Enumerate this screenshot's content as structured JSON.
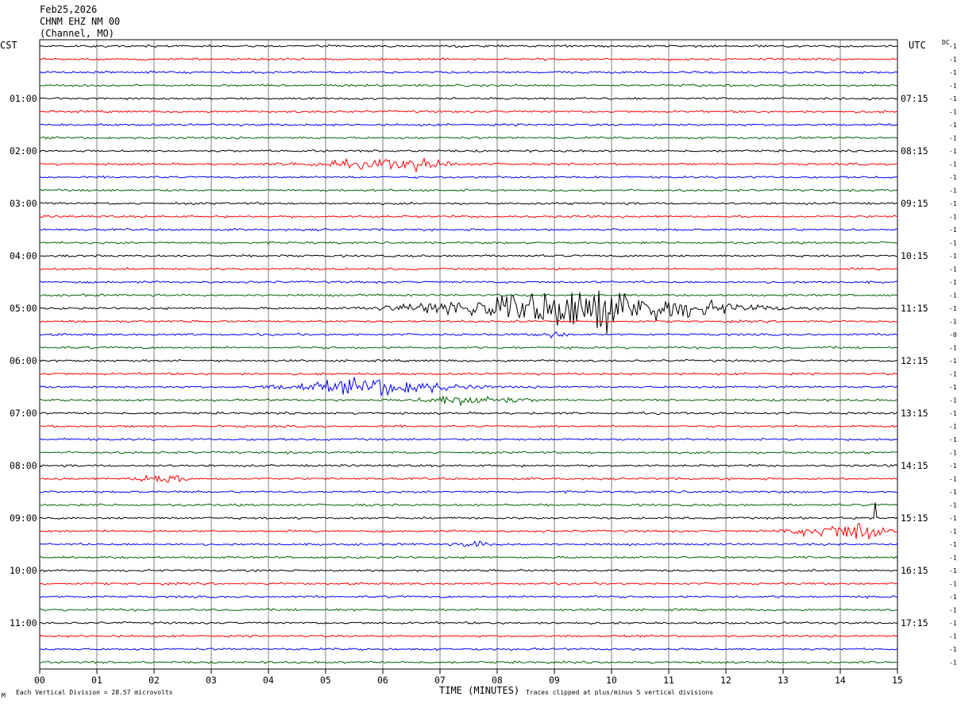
{
  "header": {
    "date": "Feb25,2026",
    "station": "CHNM EHZ NM 00",
    "location": "(Channel, MO)"
  },
  "left_zone_label": "CST",
  "right_zone_label": "UTC",
  "dc_label": "DC",
  "footer": {
    "corner_mark": "M",
    "scale_note": "Each Vertical Division =   28.57 microvolts",
    "xlabel": "TIME (MINUTES)",
    "clip_note": "Traces clipped at plus/minus 5 vertical divisions"
  },
  "colors": [
    "#000000",
    "#ff0000",
    "#0000ff",
    "#006400"
  ],
  "chart_data": {
    "type": "line",
    "title": "Feb25,2026 CHNM EHZ NM 00 (Channel, MO)",
    "xlabel": "TIME (MINUTES)",
    "xlim": [
      0,
      15
    ],
    "x_tick_labels": [
      "00",
      "01",
      "02",
      "03",
      "04",
      "05",
      "06",
      "07",
      "08",
      "09",
      "10",
      "11",
      "12",
      "13",
      "14",
      "15"
    ],
    "grid": true,
    "trace_count": 48,
    "minutes_per_trace": 15,
    "left_hour_labels": [
      {
        "trace": 4,
        "label": "01:00"
      },
      {
        "trace": 8,
        "label": "02:00"
      },
      {
        "trace": 12,
        "label": "03:00"
      },
      {
        "trace": 16,
        "label": "04:00"
      },
      {
        "trace": 20,
        "label": "05:00"
      },
      {
        "trace": 24,
        "label": "06:00"
      },
      {
        "trace": 28,
        "label": "07:00"
      },
      {
        "trace": 32,
        "label": "08:00"
      },
      {
        "trace": 36,
        "label": "09:00"
      },
      {
        "trace": 40,
        "label": "10:00"
      },
      {
        "trace": 44,
        "label": "11:00"
      }
    ],
    "right_hour_labels": [
      {
        "trace": 4,
        "label": "07:15"
      },
      {
        "trace": 8,
        "label": "08:15"
      },
      {
        "trace": 12,
        "label": "09:15"
      },
      {
        "trace": 16,
        "label": "10:15"
      },
      {
        "trace": 20,
        "label": "11:15"
      },
      {
        "trace": 24,
        "label": "12:15"
      },
      {
        "trace": 28,
        "label": "13:15"
      },
      {
        "trace": 32,
        "label": "14:15"
      },
      {
        "trace": 36,
        "label": "15:15"
      },
      {
        "trace": 40,
        "label": "16:15"
      },
      {
        "trace": 44,
        "label": "17:15"
      }
    ],
    "dc_offsets": [
      "-1",
      "-1",
      "-1",
      "-1",
      "-1",
      "-1",
      "-1",
      "-1",
      "-1",
      "-1",
      "-1",
      "-1",
      "-1",
      "-1",
      "-1",
      "-1",
      "-1",
      "-1",
      "-1",
      "-1",
      "-1",
      "-1",
      "-0",
      "-1",
      "-1",
      "-1",
      "-1",
      "-1",
      "-1",
      "-1",
      "-1",
      "-1",
      "-1",
      "-1",
      "-1",
      "-1",
      "-1",
      "-1",
      "-1",
      "-1",
      "-1",
      "-1",
      "-1",
      "-1",
      "-1",
      "-1",
      "-1",
      "-1"
    ],
    "events": [
      {
        "trace": 9,
        "start": 3.5,
        "end": 7.8,
        "peak": 6.5,
        "amplitude": 6
      },
      {
        "trace": 20,
        "start": 5.0,
        "end": 13.5,
        "peak": 9.6,
        "amplitude": 24
      },
      {
        "trace": 22,
        "start": 8.6,
        "end": 9.3,
        "peak": 9.0,
        "amplitude": 4
      },
      {
        "trace": 26,
        "start": 3.3,
        "end": 8.2,
        "peak": 6.0,
        "amplitude": 10
      },
      {
        "trace": 27,
        "start": 6.0,
        "end": 9.0,
        "peak": 7.5,
        "amplitude": 6
      },
      {
        "trace": 33,
        "start": 1.4,
        "end": 2.8,
        "peak": 2.1,
        "amplitude": 6
      },
      {
        "trace": 37,
        "start": 12.5,
        "end": 15.0,
        "peak": 14.5,
        "amplitude": 12
      },
      {
        "trace": 38,
        "start": 7.2,
        "end": 8.0,
        "peak": 7.6,
        "amplitude": 4
      }
    ],
    "spikes": [
      {
        "trace": 36,
        "x": 14.62,
        "amplitude": 20
      }
    ]
  }
}
